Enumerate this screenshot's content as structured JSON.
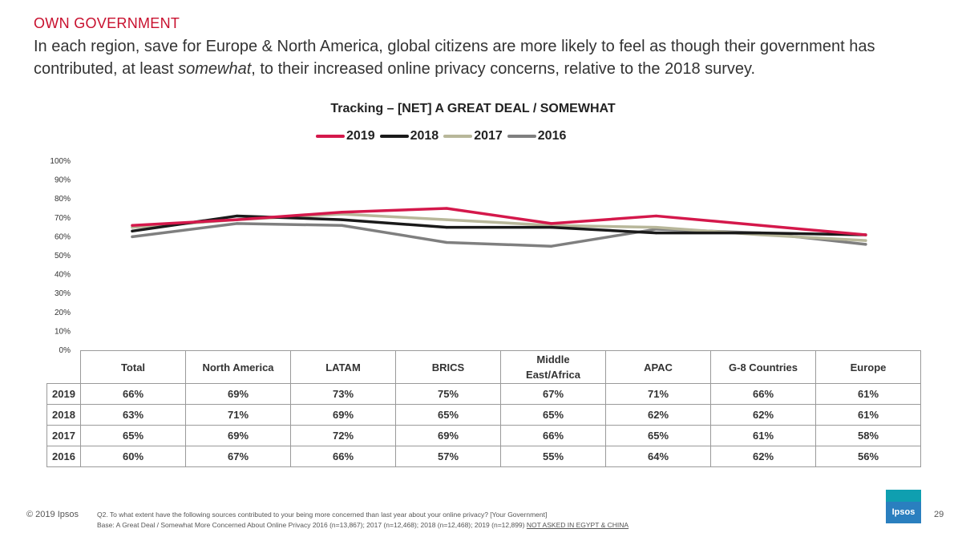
{
  "header": {
    "section_label": "OWN GOVERNMENT",
    "headline_part1": "In each region, save for Europe & North America, global citizens are more likely to feel as though their government has contributed, at least ",
    "headline_italic": "somewhat",
    "headline_part2": ", to their increased online privacy concerns, relative to the 2018 survey."
  },
  "chart_data": {
    "type": "line",
    "title": "Tracking – [NET] A GREAT DEAL / SOMEWHAT",
    "categories": [
      "Total",
      "North America",
      "LATAM",
      "BRICS",
      "Middle East/Africa",
      "APAC",
      "G-8 Countries",
      "Europe"
    ],
    "series": [
      {
        "name": "2019",
        "color": "#d4184b",
        "values": [
          66,
          69,
          73,
          75,
          67,
          71,
          66,
          61
        ],
        "labels": [
          "66%",
          "69%",
          "73%",
          "75%",
          "67%",
          "71%",
          "66%",
          "61%"
        ]
      },
      {
        "name": "2018",
        "color": "#1a1a1a",
        "values": [
          63,
          71,
          69,
          65,
          65,
          62,
          62,
          61
        ],
        "labels": [
          "63%",
          "71%",
          "69%",
          "65%",
          "65%",
          "62%",
          "62%",
          "61%"
        ]
      },
      {
        "name": "2017",
        "color": "#b8b79a",
        "values": [
          65,
          69,
          72,
          69,
          66,
          65,
          61,
          58
        ],
        "labels": [
          "65%",
          "69%",
          "72%",
          "69%",
          "66%",
          "65%",
          "61%",
          "58%"
        ]
      },
      {
        "name": "2016",
        "color": "#7f7f7f",
        "values": [
          60,
          67,
          66,
          57,
          55,
          64,
          62,
          56
        ],
        "labels": [
          "60%",
          "67%",
          "66%",
          "57%",
          "55%",
          "64%",
          "62%",
          "56%"
        ]
      }
    ],
    "ylim": [
      0,
      100
    ],
    "yticks": [
      "0%",
      "10%",
      "20%",
      "30%",
      "40%",
      "50%",
      "60%",
      "70%",
      "80%",
      "90%",
      "100%"
    ],
    "grid": false,
    "legend": "top-center"
  },
  "table": {
    "category_labels": [
      "Total",
      "North America",
      "LATAM",
      "BRICS",
      "Middle\nEast/Africa",
      "APAC",
      "G-8 Countries",
      "Europe"
    ]
  },
  "footer": {
    "copyright": "© 2019 Ipsos",
    "question": "Q2. To what extent have the following sources contributed to your being more concerned than last year about your online privacy? [Your Government]",
    "base": "Base: A Great Deal / Somewhat More Concerned About Online Privacy 2016 (n=13,867); 2017 (n=12,468); 2018 (n=12,468); 2019 (n=12,899)",
    "note": "NOT ASKED IN EGYPT & CHINA",
    "logo": "Ipsos",
    "page_number": "29"
  }
}
